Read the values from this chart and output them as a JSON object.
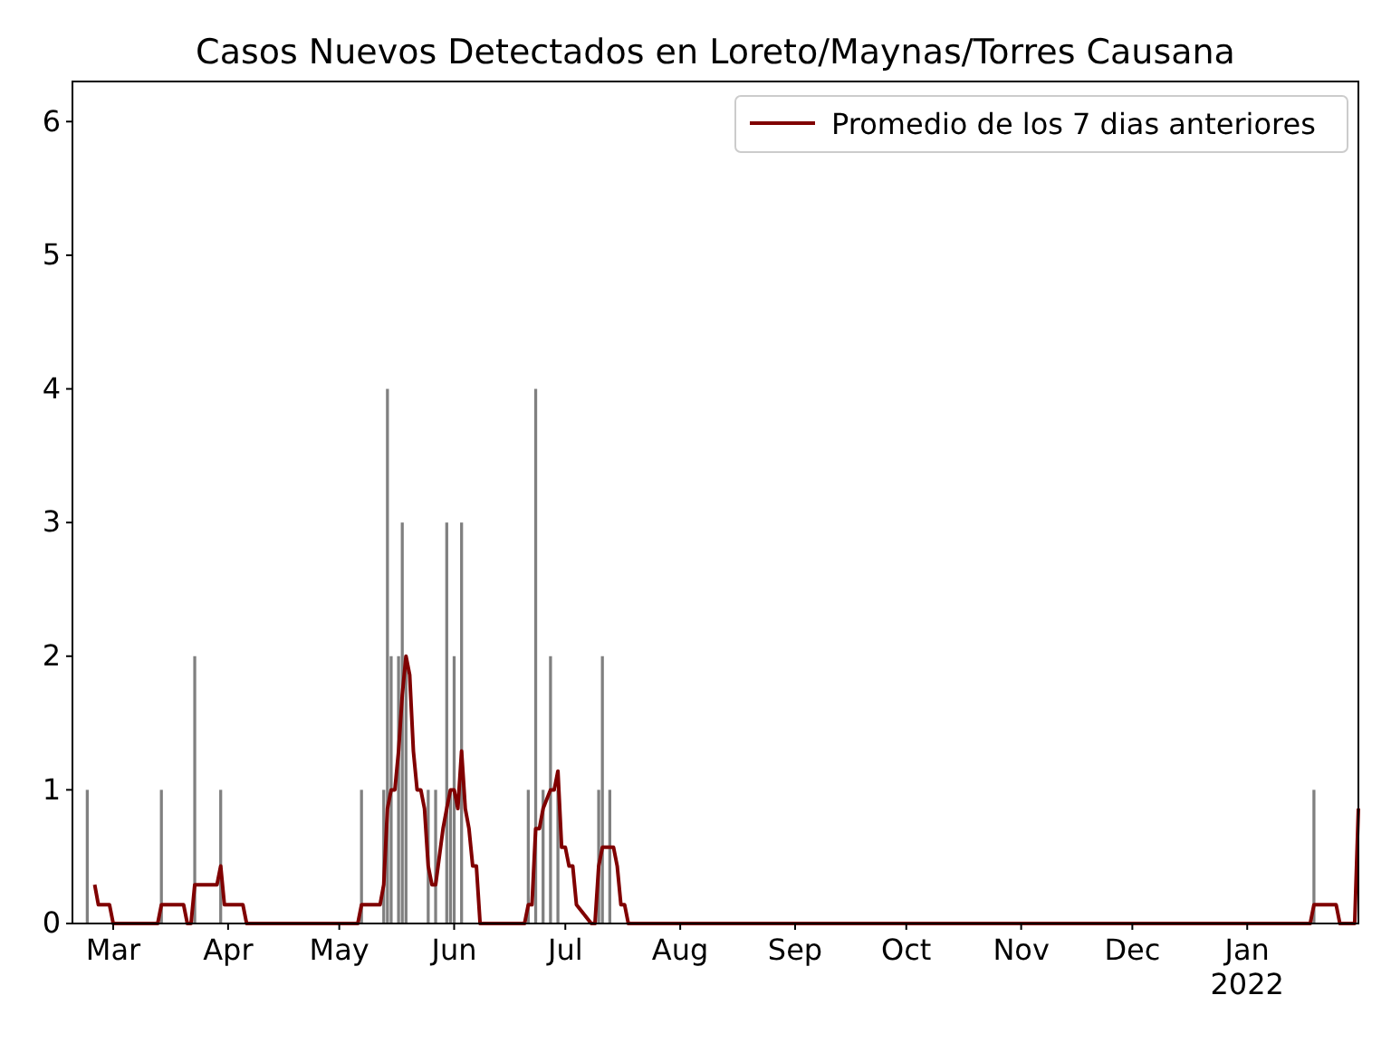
{
  "chart_data": {
    "type": "bar",
    "title": "Casos Nuevos Detectados en Loreto/Maynas/Torres Causana",
    "xlim": [
      "2021-02-18",
      "2022-01-31"
    ],
    "xticks": [
      {
        "value": "2021-03-01",
        "label": "Mar"
      },
      {
        "value": "2021-04-01",
        "label": "Apr"
      },
      {
        "value": "2021-05-01",
        "label": "May"
      },
      {
        "value": "2021-06-01",
        "label": "Jun"
      },
      {
        "value": "2021-07-01",
        "label": "Jul"
      },
      {
        "value": "2021-08-01",
        "label": "Aug"
      },
      {
        "value": "2021-09-01",
        "label": "Sep"
      },
      {
        "value": "2021-10-01",
        "label": "Oct"
      },
      {
        "value": "2021-11-01",
        "label": "Nov"
      },
      {
        "value": "2021-12-01",
        "label": "Dec"
      },
      {
        "value": "2022-01-01",
        "label": "Jan\n2022"
      }
    ],
    "ylim": [
      0,
      6.3
    ],
    "yticks": [
      0,
      1,
      2,
      3,
      4,
      5,
      6
    ],
    "grid": false,
    "legend": "top right",
    "series": [
      {
        "color": "#808080",
        "x": [
          "2021-02-22",
          "2021-03-14",
          "2021-03-23",
          "2021-03-30",
          "2021-05-07",
          "2021-05-13",
          "2021-05-14",
          "2021-05-15",
          "2021-05-17",
          "2021-05-18",
          "2021-05-19",
          "2021-05-25",
          "2021-05-27",
          "2021-05-30",
          "2021-05-31",
          "2021-06-01",
          "2021-06-03",
          "2021-06-21",
          "2021-06-23",
          "2021-06-25",
          "2021-06-27",
          "2021-06-29",
          "2021-07-10",
          "2021-07-11",
          "2021-07-13",
          "2022-01-19"
        ],
        "values": [
          1,
          1,
          2,
          1,
          1,
          1,
          4,
          2,
          2,
          3,
          2,
          1,
          1,
          3,
          1,
          2,
          3,
          1,
          4,
          1,
          2,
          1,
          1,
          2,
          1,
          1
        ]
      },
      {
        "type": "line",
        "name": "Promedio de los 7 dias anteriores",
        "color": "#800000",
        "x": [
          "2021-02-24",
          "2021-02-25",
          "2021-02-28",
          "2021-03-01",
          "2021-03-13",
          "2021-03-14",
          "2021-03-20",
          "2021-03-21",
          "2021-03-22",
          "2021-03-23",
          "2021-03-29",
          "2021-03-30",
          "2021-03-31",
          "2021-04-05",
          "2021-04-06",
          "2021-05-06",
          "2021-05-07",
          "2021-05-12",
          "2021-05-13",
          "2021-05-14",
          "2021-05-15",
          "2021-05-16",
          "2021-05-17",
          "2021-05-18",
          "2021-05-19",
          "2021-05-20",
          "2021-05-21",
          "2021-05-22",
          "2021-05-23",
          "2021-05-24",
          "2021-05-25",
          "2021-05-26",
          "2021-05-27",
          "2021-05-29",
          "2021-05-30",
          "2021-05-31",
          "2021-06-01",
          "2021-06-02",
          "2021-06-03",
          "2021-06-04",
          "2021-06-05",
          "2021-06-06",
          "2021-06-07",
          "2021-06-08",
          "2021-06-20",
          "2021-06-21",
          "2021-06-22",
          "2021-06-23",
          "2021-06-24",
          "2021-06-25",
          "2021-06-27",
          "2021-06-28",
          "2021-06-29",
          "2021-06-30",
          "2021-07-01",
          "2021-07-02",
          "2021-07-03",
          "2021-07-04",
          "2021-07-08",
          "2021-07-09",
          "2021-07-10",
          "2021-07-11",
          "2021-07-14",
          "2021-07-15",
          "2021-07-16",
          "2021-07-17",
          "2021-07-18",
          "2022-01-18",
          "2022-01-19",
          "2022-01-25",
          "2022-01-26",
          "2022-01-30",
          "2022-01-31"
        ],
        "values": [
          0.29,
          0.14,
          0.14,
          0,
          0,
          0.14,
          0.14,
          0,
          0,
          0.29,
          0.29,
          0.43,
          0.14,
          0.14,
          0,
          0,
          0.14,
          0.14,
          0.29,
          0.86,
          1.0,
          1.0,
          1.29,
          1.71,
          2.0,
          1.86,
          1.29,
          1.0,
          1.0,
          0.86,
          0.43,
          0.29,
          0.29,
          0.71,
          0.86,
          1.0,
          1.0,
          0.86,
          1.29,
          0.86,
          0.71,
          0.43,
          0.43,
          0,
          0,
          0.14,
          0.14,
          0.71,
          0.71,
          0.86,
          1.0,
          1.0,
          1.14,
          0.57,
          0.57,
          0.43,
          0.43,
          0.14,
          0,
          0,
          0.43,
          0.57,
          0.57,
          0.43,
          0.14,
          0.14,
          0,
          0,
          0.14,
          0.14,
          0,
          0,
          0.86
        ]
      }
    ]
  }
}
